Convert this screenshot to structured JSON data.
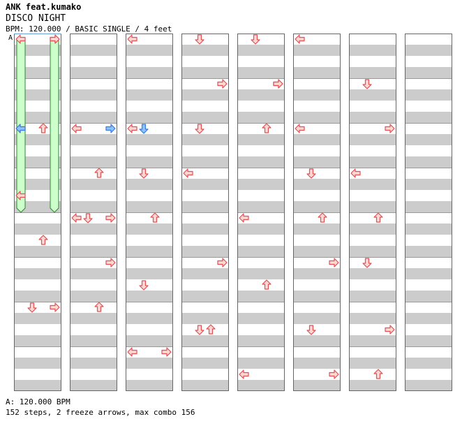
{
  "song": {
    "artist": "ANK feat.kumako",
    "title": "DISCO NIGHT",
    "info": "BPM: 120.000 / BASIC SINGLE / 4 feet"
  },
  "bpm_marker": "A",
  "footer": {
    "bpm": "A: 120.000 BPM",
    "stats": "152 steps, 2 freeze arrows, max combo 156"
  },
  "colors": {
    "arrow_fill": "#ffd6d6",
    "arrow_stroke": "#e05050",
    "arrow_blue_fill": "#8cc2ff",
    "arrow_blue_stroke": "#3a7ad8",
    "stripe": "#cccccc",
    "freeze_fill": "#ccffcc",
    "freeze_stroke": "#2e8a2e"
  },
  "chart_data": {
    "type": "step-chart",
    "columns": 8,
    "measures_per_column": 8,
    "lanes": [
      "left",
      "down",
      "up",
      "right"
    ],
    "notes": [
      [
        3,
        0
      ],
      [
        2,
        8
      ],
      [
        0,
        14
      ],
      [
        2,
        18
      ],
      [
        1,
        24
      ],
      [
        3,
        24
      ],
      [
        0,
        8
      ],
      [
        2,
        12
      ],
      [
        0,
        16
      ],
      [
        3,
        20
      ],
      [
        0,
        8
      ],
      [
        1,
        16
      ],
      [
        3,
        16
      ],
      [
        2,
        24
      ],
      [
        3,
        28
      ],
      [
        0,
        8
      ],
      [
        1,
        12
      ],
      [
        2,
        16
      ],
      [
        1,
        22
      ],
      [
        0,
        28
      ],
      [
        0,
        0
      ],
      [
        3,
        4
      ],
      [
        1,
        8
      ],
      [
        0,
        12
      ],
      [
        3,
        20
      ],
      [
        1,
        26
      ],
      [
        2,
        26
      ],
      [
        1,
        0
      ],
      [
        3,
        4
      ],
      [
        2,
        8
      ],
      [
        0,
        16
      ],
      [
        2,
        22
      ],
      [
        0,
        30
      ],
      [
        1,
        0
      ],
      [
        3,
        4
      ],
      [
        0,
        8
      ],
      [
        1,
        12
      ],
      [
        2,
        16
      ],
      [
        3,
        20
      ],
      [
        1,
        26
      ],
      [
        3,
        30
      ],
      [
        0,
        0
      ],
      [
        1,
        4
      ],
      [
        3,
        8
      ],
      [
        0,
        12
      ],
      [
        2,
        16
      ],
      [
        1,
        20
      ],
      [
        3,
        26
      ],
      [
        2,
        30
      ]
    ],
    "blue_notes": [
      [
        0,
        8
      ],
      [
        3,
        40
      ],
      [
        1,
        72
      ]
    ],
    "freezes": [
      {
        "lane": 0,
        "start_beat": 0,
        "end_beat": 16
      },
      {
        "lane": 3,
        "start_beat": 0,
        "end_beat": 16
      }
    ]
  }
}
